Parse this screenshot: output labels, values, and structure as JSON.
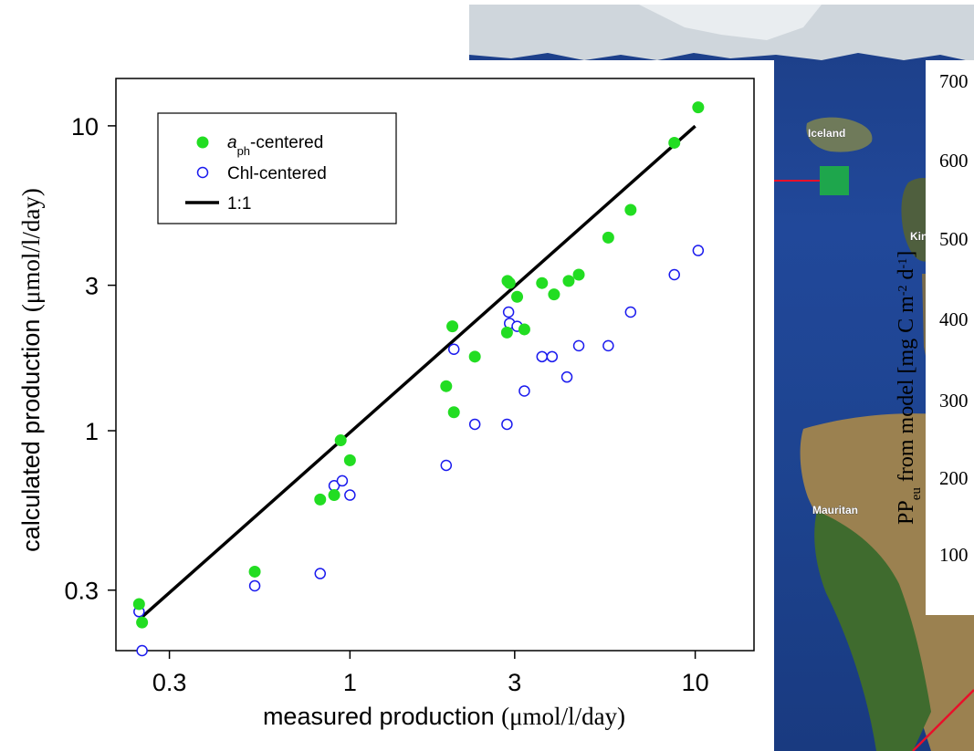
{
  "chart_data": {
    "type": "scatter",
    "title": "",
    "xlabel": "measured production",
    "xlabel_unit": "(μmol/l/day)",
    "ylabel": "calculated production",
    "ylabel_unit": "(μmol/l/day)",
    "x_scale": "log",
    "y_scale": "log",
    "xlim": [
      0.21,
      14.8
    ],
    "ylim": [
      0.19,
      14.3
    ],
    "x_ticks": [
      0.3,
      1,
      3,
      10
    ],
    "x_tick_labels": [
      "0.3",
      "1",
      "3",
      "10"
    ],
    "y_ticks": [
      0.3,
      1,
      3,
      10
    ],
    "y_tick_labels": [
      "0.3",
      "1",
      "3",
      "10"
    ],
    "grid": false,
    "legend_position": "top-left",
    "series": [
      {
        "name": "aph-centered",
        "name_main": "a",
        "name_sub": "ph",
        "name_rest": "-centered",
        "marker": "filled-circle",
        "color": "#22dd22",
        "points": [
          [
            0.245,
            0.27
          ],
          [
            0.25,
            0.235
          ],
          [
            0.53,
            0.345
          ],
          [
            0.82,
            0.595
          ],
          [
            0.9,
            0.615
          ],
          [
            0.94,
            0.93
          ],
          [
            1.0,
            0.8
          ],
          [
            1.9,
            1.4
          ],
          [
            1.98,
            2.2
          ],
          [
            2.0,
            1.15
          ],
          [
            2.3,
            1.75
          ],
          [
            2.85,
            2.1
          ],
          [
            2.86,
            3.1
          ],
          [
            2.9,
            3.05
          ],
          [
            3.05,
            2.75
          ],
          [
            3.2,
            2.15
          ],
          [
            3.6,
            3.05
          ],
          [
            3.9,
            2.8
          ],
          [
            4.3,
            3.1
          ],
          [
            4.6,
            3.25
          ],
          [
            5.6,
            4.3
          ],
          [
            6.5,
            5.3
          ],
          [
            8.7,
            8.8
          ],
          [
            10.2,
            11.5
          ]
        ]
      },
      {
        "name": "Chl-centered",
        "marker": "open-circle",
        "color": "#1a1aee",
        "points": [
          [
            0.245,
            0.255
          ],
          [
            0.25,
            0.19
          ],
          [
            0.53,
            0.31
          ],
          [
            0.82,
            0.34
          ],
          [
            0.9,
            0.66
          ],
          [
            0.95,
            0.685
          ],
          [
            1.0,
            0.615
          ],
          [
            1.9,
            0.77
          ],
          [
            2.0,
            1.85
          ],
          [
            2.0,
            1.15
          ],
          [
            2.3,
            1.05
          ],
          [
            2.85,
            1.05
          ],
          [
            2.88,
            2.45
          ],
          [
            2.9,
            2.25
          ],
          [
            3.05,
            2.2
          ],
          [
            3.2,
            1.35
          ],
          [
            3.6,
            1.75
          ],
          [
            3.85,
            1.75
          ],
          [
            4.25,
            1.5
          ],
          [
            4.6,
            1.9
          ],
          [
            5.6,
            1.9
          ],
          [
            6.5,
            2.45
          ],
          [
            8.7,
            3.25
          ],
          [
            10.2,
            3.9
          ]
        ]
      },
      {
        "name": "1:1",
        "type": "line",
        "color": "#000000",
        "points": [
          [
            0.25,
            0.245
          ],
          [
            10.0,
            9.98
          ]
        ]
      }
    ]
  },
  "map_panel": {
    "labels": [
      "Iceland",
      "King",
      "Mauritan"
    ],
    "marker_color": "#1ea64c",
    "arrow_color": "#e8102a",
    "colorbar": {
      "title_main": "PP",
      "title_sub": "eu",
      "title_rest": " from model [mg C m",
      "title_exp1": "-2",
      "title_mid": " d",
      "title_exp2": "-1",
      "title_end": "]",
      "ticks": [
        "100",
        "200",
        "300",
        "400",
        "500",
        "600",
        "700"
      ]
    }
  }
}
